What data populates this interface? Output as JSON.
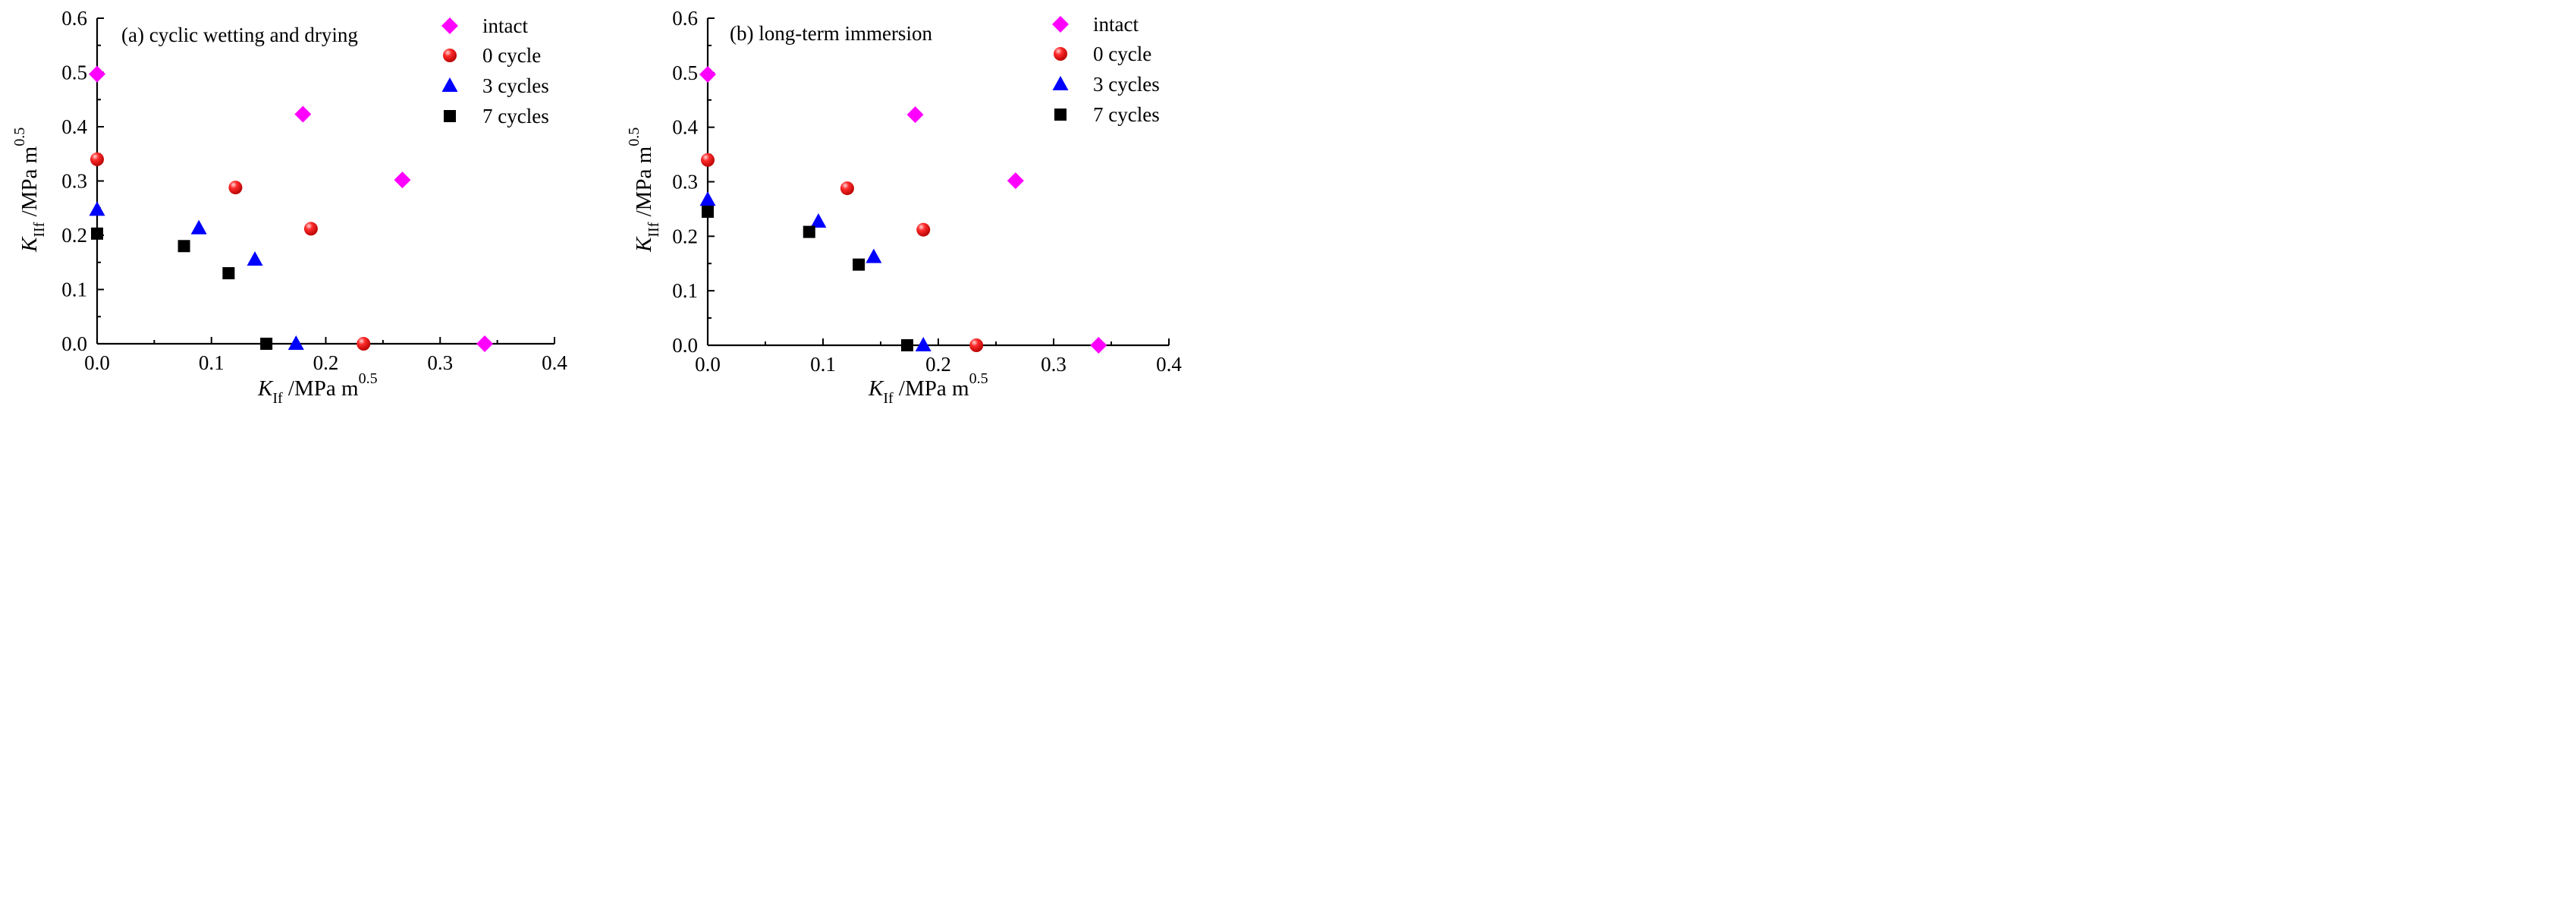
{
  "chart_data": [
    {
      "type": "scatter",
      "annotation": "(a) cyclic wetting and drying",
      "xlabel": {
        "symbol": "K",
        "subscript": "If",
        "unit": " /MPa m",
        "superscript": "0.5"
      },
      "ylabel": {
        "symbol": "K",
        "subscript": "IIf",
        "unit": " /MPa m",
        "superscript": "0.5"
      },
      "xlim": [
        0,
        0.4
      ],
      "ylim": [
        0,
        0.6
      ],
      "xticks": [
        "0.0",
        "0.1",
        "0.2",
        "0.3",
        "0.4"
      ],
      "yticks": [
        "0.0",
        "0.1",
        "0.2",
        "0.3",
        "0.4",
        "0.5",
        "0.6"
      ],
      "grid": false,
      "legend_position": "top-right",
      "series": [
        {
          "name": "intact",
          "marker": "diamond",
          "color": "#ff00ff",
          "x": [
            0.0,
            0.18,
            0.267,
            0.339
          ],
          "y": [
            0.497,
            0.423,
            0.302,
            0.0
          ]
        },
        {
          "name": "0 cycle",
          "marker": "sphere",
          "color": "#ff1a1a",
          "x": [
            0.0,
            0.121,
            0.187,
            0.233
          ],
          "y": [
            0.34,
            0.288,
            0.212,
            0.0
          ]
        },
        {
          "name": "3 cycles",
          "marker": "triangle",
          "color": "#0000ff",
          "x": [
            0.0,
            0.089,
            0.138,
            0.174
          ],
          "y": [
            0.247,
            0.213,
            0.155,
            0.0
          ]
        },
        {
          "name": "7 cycles",
          "marker": "square",
          "color": "#000000",
          "x": [
            0.0,
            0.076,
            0.115,
            0.148
          ],
          "y": [
            0.203,
            0.18,
            0.13,
            0.0
          ]
        }
      ]
    },
    {
      "type": "scatter",
      "annotation": "(b) long-term immersion",
      "xlabel": {
        "symbol": "K",
        "subscript": "If",
        "unit": " /MPa m",
        "superscript": "0.5"
      },
      "ylabel": {
        "symbol": "K",
        "subscript": "IIf",
        "unit": " /MPa m",
        "superscript": "0.5"
      },
      "xlim": [
        0,
        0.4
      ],
      "ylim": [
        0,
        0.6
      ],
      "xticks": [
        "0.0",
        "0.1",
        "0.2",
        "0.3",
        "0.4"
      ],
      "yticks": [
        "0.0",
        "0.1",
        "0.2",
        "0.3",
        "0.4",
        "0.5",
        "0.6"
      ],
      "grid": false,
      "legend_position": "top-right",
      "series": [
        {
          "name": "intact",
          "marker": "diamond",
          "color": "#ff00ff",
          "x": [
            0.0,
            0.18,
            0.267,
            0.339
          ],
          "y": [
            0.497,
            0.423,
            0.302,
            0.0
          ]
        },
        {
          "name": "0 cycle",
          "marker": "sphere",
          "color": "#ff1a1a",
          "x": [
            0.0,
            0.121,
            0.187,
            0.233
          ],
          "y": [
            0.34,
            0.288,
            0.212,
            0.0
          ]
        },
        {
          "name": "3 cycles",
          "marker": "triangle",
          "color": "#0000ff",
          "x": [
            0.0,
            0.096,
            0.144,
            0.187
          ],
          "y": [
            0.267,
            0.227,
            0.162,
            0.0
          ]
        },
        {
          "name": "7 cycles",
          "marker": "square",
          "color": "#000000",
          "x": [
            0.0,
            0.088,
            0.131,
            0.173
          ],
          "y": [
            0.245,
            0.208,
            0.148,
            0.0
          ]
        }
      ]
    }
  ]
}
